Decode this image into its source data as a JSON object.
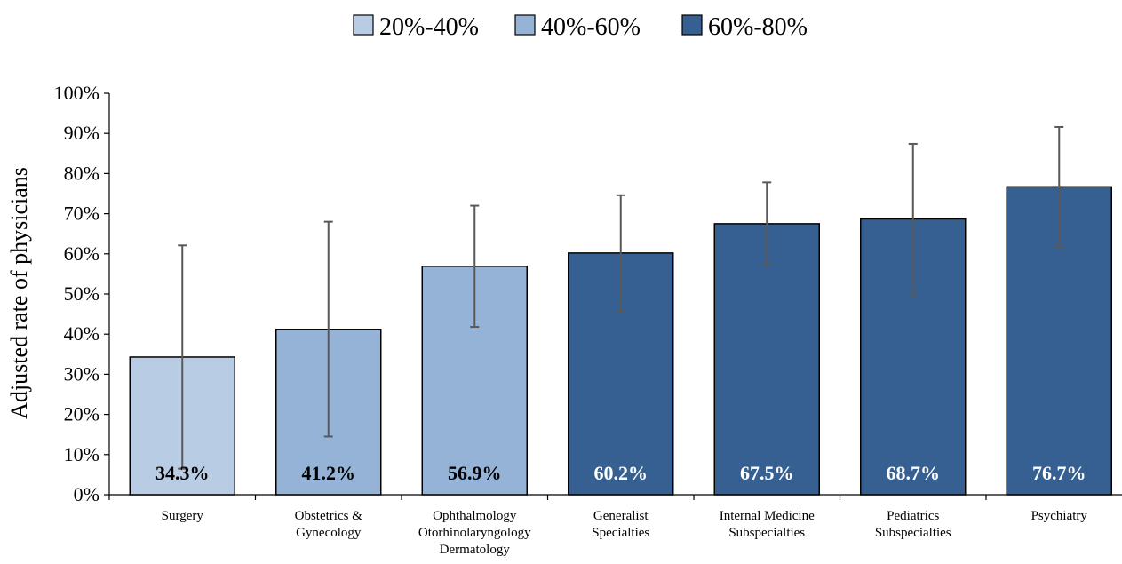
{
  "chart_data": {
    "type": "bar",
    "title": "",
    "xlabel": "",
    "ylabel": "Adjusted rate of physicians",
    "ylim": [
      0,
      100
    ],
    "yticks": [
      "0%",
      "10%",
      "20%",
      "30%",
      "40%",
      "50%",
      "60%",
      "70%",
      "80%",
      "90%",
      "100%"
    ],
    "grid": false,
    "legend_position": "top-center",
    "legend": [
      {
        "label": "20%-40%",
        "color": "#b8cce4"
      },
      {
        "label": "40%-60%",
        "color": "#95b3d7"
      },
      {
        "label": "60%-80%",
        "color": "#376092"
      }
    ],
    "categories": [
      [
        "Surgery"
      ],
      [
        "Obstetrics &",
        "Gynecology"
      ],
      [
        "Ophthalmology",
        "Otorhinolaryngology",
        "Dermatology"
      ],
      [
        "Generalist",
        "Specialties"
      ],
      [
        "Internal Medicine",
        "Subspecialties"
      ],
      [
        "Pediatrics",
        "Subspecialties"
      ],
      [
        "Psychiatry"
      ]
    ],
    "values": [
      34.3,
      41.2,
      56.9,
      60.2,
      67.5,
      68.7,
      76.7
    ],
    "value_labels": [
      "34.3%",
      "41.2%",
      "56.9%",
      "60.2%",
      "67.5%",
      "68.7%",
      "76.7%"
    ],
    "error_low": [
      6.5,
      14.5,
      41.8,
      45.8,
      57.2,
      49.8,
      61.6
    ],
    "error_high": [
      62.1,
      68.0,
      72.0,
      74.6,
      77.8,
      87.4,
      91.6
    ],
    "bar_group": [
      0,
      1,
      1,
      2,
      2,
      2,
      2
    ],
    "data_label_colors": [
      "#000000",
      "#000000",
      "#000000",
      "#ffffff",
      "#ffffff",
      "#ffffff",
      "#ffffff"
    ]
  }
}
